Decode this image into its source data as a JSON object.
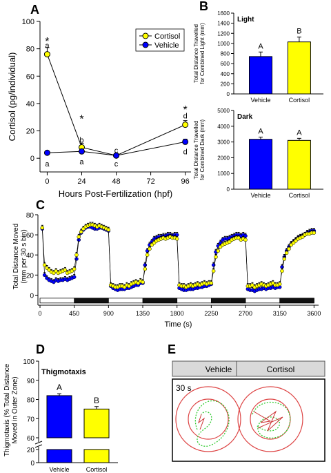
{
  "panels": {
    "A": "A",
    "B": "B",
    "C": "C",
    "D": "D",
    "E": "E"
  },
  "colors": {
    "cortisol": "#ffff00",
    "vehicle": "#0000ff",
    "axis": "#000000",
    "track_ring": "#cc3333",
    "track_path": "#33cc33"
  },
  "chart_data": [
    {
      "panel": "A",
      "type": "line",
      "xlabel": "Hours Post-Fertilization (hpf)",
      "ylabel": "Cortisol (pg/individual)",
      "xticks": [
        "0",
        "24",
        "48",
        "72",
        "96"
      ],
      "yticks": [
        "0",
        "20",
        "40",
        "60",
        "80",
        "100"
      ],
      "xlim": [
        -5,
        100
      ],
      "ylim": [
        -10,
        100
      ],
      "legend": "top-right",
      "series": [
        {
          "name": "Cortisol",
          "x": [
            0,
            24,
            48,
            96
          ],
          "y": [
            76,
            8,
            2,
            24.5
          ],
          "err": [
            5,
            3,
            1,
            3
          ]
        },
        {
          "name": "Vehicle",
          "x": [
            0,
            24,
            48,
            96
          ],
          "y": [
            4,
            5,
            2,
            12
          ],
          "err": [
            1,
            1,
            1,
            2
          ]
        }
      ],
      "annotations": [
        {
          "text": "*",
          "x": 0,
          "y": 87
        },
        {
          "text": "a",
          "x": 0,
          "y": 82.5
        },
        {
          "text": "a",
          "x": 0,
          "y": -4
        },
        {
          "text": "*",
          "x": 24,
          "y": 30
        },
        {
          "text": "b",
          "x": 24,
          "y": 13.5
        },
        {
          "text": "a",
          "x": 24,
          "y": -2.5
        },
        {
          "text": "c",
          "x": 48,
          "y": 6
        },
        {
          "text": "c",
          "x": 48,
          "y": -4
        },
        {
          "text": "*",
          "x": 96,
          "y": 37
        },
        {
          "text": "d",
          "x": 96,
          "y": 31
        },
        {
          "text": "d",
          "x": 96,
          "y": 5
        }
      ]
    },
    {
      "panel": "B-light",
      "type": "bar",
      "title": "Light",
      "ylabel_lines": [
        "Total Distance Travelled",
        "for Combined Light (mm)"
      ],
      "categories": [
        "Vehicle",
        "Cortisol"
      ],
      "values": [
        740,
        1030
      ],
      "err": [
        90,
        95
      ],
      "letters": [
        "A",
        "B"
      ],
      "yticks": [
        "0",
        "200",
        "400",
        "600",
        "800",
        "1000",
        "1200",
        "1400",
        "1600"
      ],
      "ylim": [
        0,
        1600
      ]
    },
    {
      "panel": "B-dark",
      "type": "bar",
      "title": "Dark",
      "ylabel_lines": [
        "Total Distance Travelled",
        "for Combined Dark (mm)"
      ],
      "categories": [
        "Vehicle",
        "Cortisol"
      ],
      "values": [
        3170,
        3100
      ],
      "err": [
        140,
        130
      ],
      "letters": [
        "A",
        "A"
      ],
      "yticks": [
        "0",
        "1000",
        "2000",
        "3000",
        "4000",
        "5000"
      ],
      "ylim": [
        0,
        5000
      ]
    },
    {
      "panel": "C",
      "type": "line",
      "xlabel": "Time (s)",
      "ylabel_lines": [
        "Total Distance Moved",
        "(mm per 30 s bin)"
      ],
      "xticks": [
        "0",
        "450",
        "900",
        "1350",
        "1800",
        "2250",
        "2700",
        "3150",
        "3600"
      ],
      "yticks": [
        "0",
        "20",
        "40",
        "60",
        "80"
      ],
      "xlim": [
        0,
        3660
      ],
      "ylim": [
        -10,
        80
      ],
      "dark_periods": [
        [
          450,
          900
        ],
        [
          1350,
          1800
        ],
        [
          2250,
          2700
        ],
        [
          3150,
          3600
        ]
      ],
      "series": [
        {
          "name": "Cortisol",
          "step_s": 30,
          "values": [
            67,
            30,
            27,
            25,
            23,
            22,
            24,
            22,
            23,
            24,
            25,
            22,
            23,
            24,
            26,
            40,
            58,
            63,
            66,
            68,
            69,
            70,
            70,
            69,
            68,
            69,
            68,
            67,
            66,
            65,
            10,
            9,
            8,
            8,
            9,
            9,
            8,
            10,
            9,
            11,
            12,
            13,
            12,
            14,
            13,
            26,
            40,
            46,
            50,
            52,
            54,
            55,
            56,
            57,
            56,
            57,
            58,
            57,
            57,
            56,
            10,
            9,
            9,
            8,
            9,
            10,
            9,
            10,
            11,
            10,
            11,
            12,
            11,
            12,
            12,
            24,
            38,
            44,
            48,
            50,
            51,
            52,
            53,
            55,
            56,
            57,
            57,
            55,
            56,
            55,
            9,
            9,
            10,
            8,
            9,
            10,
            11,
            10,
            9,
            10,
            11,
            12,
            10,
            10,
            11,
            24,
            36,
            42,
            46,
            50,
            52,
            54,
            56,
            57,
            58,
            60,
            61,
            61,
            62,
            62
          ],
          "err_approx": 2.5
        },
        {
          "name": "Vehicle",
          "step_s": 30,
          "values": [
            66,
            20,
            17,
            15,
            14,
            13,
            15,
            14,
            15,
            15,
            16,
            15,
            16,
            17,
            18,
            36,
            55,
            62,
            65,
            67,
            68,
            68,
            67,
            66,
            66,
            67,
            67,
            66,
            65,
            64,
            9,
            7,
            6,
            5,
            6,
            6,
            6,
            7,
            7,
            8,
            9,
            10,
            10,
            12,
            12,
            30,
            44,
            50,
            53,
            56,
            57,
            58,
            58,
            59,
            59,
            60,
            60,
            59,
            60,
            60,
            7,
            6,
            5,
            5,
            6,
            6,
            6,
            7,
            7,
            8,
            8,
            9,
            9,
            10,
            11,
            30,
            43,
            49,
            52,
            55,
            56,
            56,
            57,
            58,
            59,
            60,
            60,
            59,
            60,
            59,
            6,
            5,
            5,
            4,
            5,
            6,
            6,
            7,
            6,
            7,
            7,
            8,
            7,
            8,
            8,
            28,
            38,
            44,
            48,
            51,
            53,
            55,
            57,
            58,
            59,
            60,
            62,
            63,
            64,
            64
          ],
          "err_approx": 2.5
        }
      ]
    },
    {
      "panel": "D",
      "type": "bar",
      "title": "Thigmotaxis",
      "ylabel_lines": [
        "Thigmotaxis (% Total Distance",
        "Moved in Outer Zone)"
      ],
      "categories": [
        "Vehicle",
        "Cortisol"
      ],
      "values": [
        82,
        75
      ],
      "err": [
        1,
        1.3
      ],
      "letters": [
        "A",
        "B"
      ],
      "yticks_upper": [
        "60",
        "70",
        "80",
        "90",
        "100"
      ],
      "yticks_lower": [
        "0",
        "20"
      ],
      "ylim_upper": [
        60,
        100
      ],
      "ylim_lower": [
        0,
        20
      ],
      "axis_break": true
    }
  ],
  "panel_e": {
    "labels": [
      "Vehicle",
      "Cortisol"
    ],
    "time_label": "30 s"
  }
}
